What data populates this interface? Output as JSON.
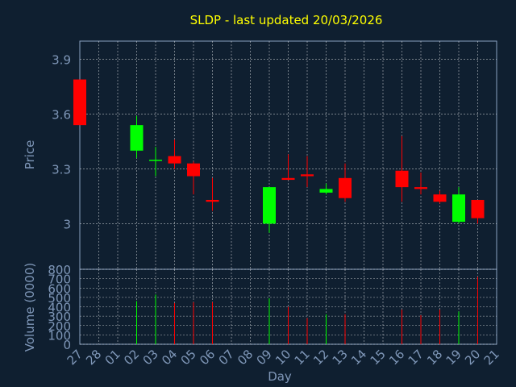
{
  "chart_data": {
    "type": "candlestick",
    "title": "SLDP - last updated 20/03/2026",
    "xlabel": "Day",
    "ylabel": "Price",
    "volume_label": "Volume (0000)",
    "x_ticks": [
      "27",
      "28",
      "01",
      "02",
      "03",
      "04",
      "05",
      "06",
      "07",
      "08",
      "09",
      "10",
      "11",
      "12",
      "13",
      "14",
      "15",
      "16",
      "17",
      "18",
      "19",
      "20",
      "21"
    ],
    "price_ticks": [
      "3",
      "3.3",
      "3.6",
      "3.9"
    ],
    "volume_ticks": [
      "0",
      "100",
      "200",
      "300",
      "400",
      "500",
      "600",
      "700",
      "800"
    ],
    "price_range": [
      2.75,
      4.0
    ],
    "volume_range": [
      0,
      800
    ],
    "grid": true,
    "colors": {
      "up": "#00ff00",
      "down": "#ff0000",
      "grid": "#ffffff",
      "background": "#0f1f30",
      "title": "#ffff00",
      "axis": "#7f97b8"
    },
    "candles": [
      {
        "day": "27",
        "open": 3.79,
        "high": 3.79,
        "low": 3.54,
        "close": 3.54,
        "volume": 0
      },
      {
        "day": "02",
        "open": 3.4,
        "high": 3.59,
        "low": 3.36,
        "close": 3.54,
        "volume": 460
      },
      {
        "day": "03",
        "open": 3.35,
        "high": 3.42,
        "low": 3.26,
        "close": 3.35,
        "volume": 530
      },
      {
        "day": "04",
        "open": 3.37,
        "high": 3.46,
        "low": 3.3,
        "close": 3.33,
        "volume": 440
      },
      {
        "day": "05",
        "open": 3.33,
        "high": 3.34,
        "low": 3.16,
        "close": 3.26,
        "volume": 450
      },
      {
        "day": "06",
        "open": 3.13,
        "high": 3.25,
        "low": 3.07,
        "close": 3.12,
        "volume": 450
      },
      {
        "day": "09",
        "open": 3.0,
        "high": 3.2,
        "low": 2.95,
        "close": 3.2,
        "volume": 490
      },
      {
        "day": "10",
        "open": 3.25,
        "high": 3.38,
        "low": 3.24,
        "close": 3.24,
        "volume": 400
      },
      {
        "day": "11",
        "open": 3.27,
        "high": 3.37,
        "low": 3.2,
        "close": 3.26,
        "volume": 280
      },
      {
        "day": "12",
        "open": 3.17,
        "high": 3.22,
        "low": 3.16,
        "close": 3.19,
        "volume": 320
      },
      {
        "day": "13",
        "open": 3.25,
        "high": 3.33,
        "low": 3.12,
        "close": 3.14,
        "volume": 320
      },
      {
        "day": "16",
        "open": 3.29,
        "high": 3.48,
        "low": 3.12,
        "close": 3.2,
        "volume": 370
      },
      {
        "day": "17",
        "open": 3.2,
        "high": 3.28,
        "low": 3.16,
        "close": 3.19,
        "volume": 310
      },
      {
        "day": "18",
        "open": 3.16,
        "high": 3.18,
        "low": 3.11,
        "close": 3.12,
        "volume": 370
      },
      {
        "day": "19",
        "open": 3.01,
        "high": 3.2,
        "low": 3.0,
        "close": 3.16,
        "volume": 350
      },
      {
        "day": "20",
        "open": 3.13,
        "high": 3.13,
        "low": 3.0,
        "close": 3.03,
        "volume": 720
      }
    ]
  }
}
